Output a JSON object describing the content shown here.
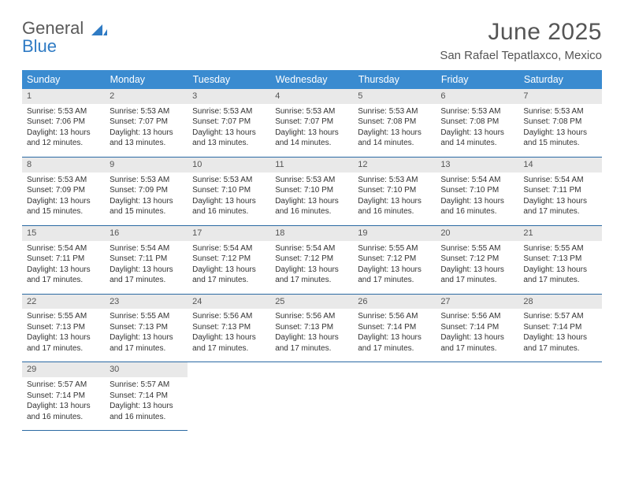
{
  "brand": {
    "line1": "General",
    "line2": "Blue"
  },
  "title": {
    "month": "June 2025",
    "location": "San Rafael Tepatlaxco, Mexico"
  },
  "colors": {
    "header_bg": "#3a8bd0",
    "header_text": "#ffffff",
    "row_border": "#2b6aa3",
    "daynum_bg": "#e9e9e9",
    "text": "#333333",
    "brand_gray": "#5a5a5a",
    "brand_blue": "#2f7bc4"
  },
  "weekdays": [
    "Sunday",
    "Monday",
    "Tuesday",
    "Wednesday",
    "Thursday",
    "Friday",
    "Saturday"
  ],
  "days": [
    {
      "n": 1,
      "sr": "5:53 AM",
      "ss": "7:06 PM",
      "dl": "13 hours and 12 minutes."
    },
    {
      "n": 2,
      "sr": "5:53 AM",
      "ss": "7:07 PM",
      "dl": "13 hours and 13 minutes."
    },
    {
      "n": 3,
      "sr": "5:53 AM",
      "ss": "7:07 PM",
      "dl": "13 hours and 13 minutes."
    },
    {
      "n": 4,
      "sr": "5:53 AM",
      "ss": "7:07 PM",
      "dl": "13 hours and 14 minutes."
    },
    {
      "n": 5,
      "sr": "5:53 AM",
      "ss": "7:08 PM",
      "dl": "13 hours and 14 minutes."
    },
    {
      "n": 6,
      "sr": "5:53 AM",
      "ss": "7:08 PM",
      "dl": "13 hours and 14 minutes."
    },
    {
      "n": 7,
      "sr": "5:53 AM",
      "ss": "7:08 PM",
      "dl": "13 hours and 15 minutes."
    },
    {
      "n": 8,
      "sr": "5:53 AM",
      "ss": "7:09 PM",
      "dl": "13 hours and 15 minutes."
    },
    {
      "n": 9,
      "sr": "5:53 AM",
      "ss": "7:09 PM",
      "dl": "13 hours and 15 minutes."
    },
    {
      "n": 10,
      "sr": "5:53 AM",
      "ss": "7:10 PM",
      "dl": "13 hours and 16 minutes."
    },
    {
      "n": 11,
      "sr": "5:53 AM",
      "ss": "7:10 PM",
      "dl": "13 hours and 16 minutes."
    },
    {
      "n": 12,
      "sr": "5:53 AM",
      "ss": "7:10 PM",
      "dl": "13 hours and 16 minutes."
    },
    {
      "n": 13,
      "sr": "5:54 AM",
      "ss": "7:10 PM",
      "dl": "13 hours and 16 minutes."
    },
    {
      "n": 14,
      "sr": "5:54 AM",
      "ss": "7:11 PM",
      "dl": "13 hours and 17 minutes."
    },
    {
      "n": 15,
      "sr": "5:54 AM",
      "ss": "7:11 PM",
      "dl": "13 hours and 17 minutes."
    },
    {
      "n": 16,
      "sr": "5:54 AM",
      "ss": "7:11 PM",
      "dl": "13 hours and 17 minutes."
    },
    {
      "n": 17,
      "sr": "5:54 AM",
      "ss": "7:12 PM",
      "dl": "13 hours and 17 minutes."
    },
    {
      "n": 18,
      "sr": "5:54 AM",
      "ss": "7:12 PM",
      "dl": "13 hours and 17 minutes."
    },
    {
      "n": 19,
      "sr": "5:55 AM",
      "ss": "7:12 PM",
      "dl": "13 hours and 17 minutes."
    },
    {
      "n": 20,
      "sr": "5:55 AM",
      "ss": "7:12 PM",
      "dl": "13 hours and 17 minutes."
    },
    {
      "n": 21,
      "sr": "5:55 AM",
      "ss": "7:13 PM",
      "dl": "13 hours and 17 minutes."
    },
    {
      "n": 22,
      "sr": "5:55 AM",
      "ss": "7:13 PM",
      "dl": "13 hours and 17 minutes."
    },
    {
      "n": 23,
      "sr": "5:55 AM",
      "ss": "7:13 PM",
      "dl": "13 hours and 17 minutes."
    },
    {
      "n": 24,
      "sr": "5:56 AM",
      "ss": "7:13 PM",
      "dl": "13 hours and 17 minutes."
    },
    {
      "n": 25,
      "sr": "5:56 AM",
      "ss": "7:13 PM",
      "dl": "13 hours and 17 minutes."
    },
    {
      "n": 26,
      "sr": "5:56 AM",
      "ss": "7:14 PM",
      "dl": "13 hours and 17 minutes."
    },
    {
      "n": 27,
      "sr": "5:56 AM",
      "ss": "7:14 PM",
      "dl": "13 hours and 17 minutes."
    },
    {
      "n": 28,
      "sr": "5:57 AM",
      "ss": "7:14 PM",
      "dl": "13 hours and 17 minutes."
    },
    {
      "n": 29,
      "sr": "5:57 AM",
      "ss": "7:14 PM",
      "dl": "13 hours and 16 minutes."
    },
    {
      "n": 30,
      "sr": "5:57 AM",
      "ss": "7:14 PM",
      "dl": "13 hours and 16 minutes."
    }
  ],
  "labels": {
    "sunrise": "Sunrise:",
    "sunset": "Sunset:",
    "daylight": "Daylight:"
  }
}
